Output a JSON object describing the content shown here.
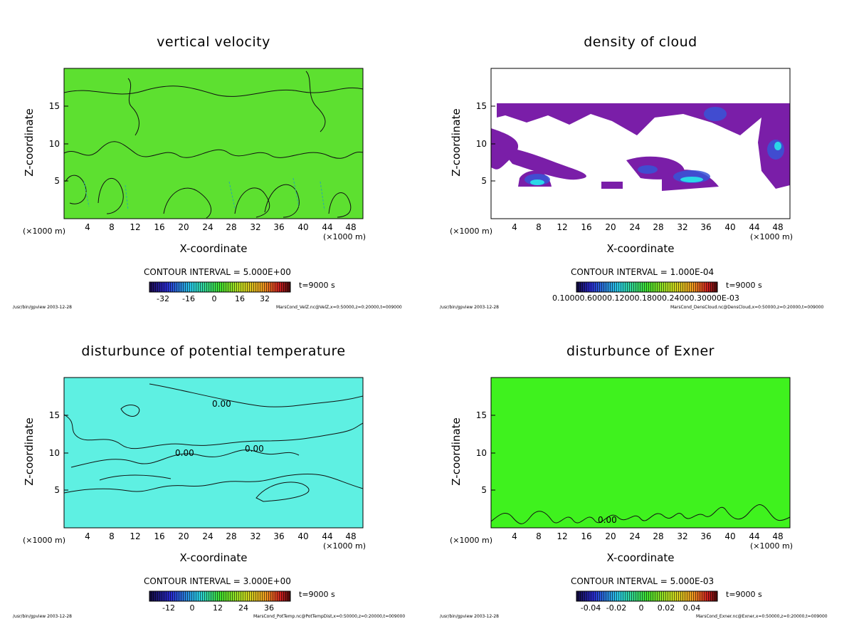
{
  "colors": {
    "velocity_bg": "#5de030",
    "potential_bg": "#5ef0e2",
    "exner_bg": "#3ff21e",
    "cloud_main": "#7a1ea8",
    "cloud_mid": "#3855d8",
    "cloud_high": "#2ad7e8",
    "contour": "#111111",
    "cyan_dash": "#2aa9a8"
  },
  "panels": [
    {
      "title": "vertical velocity",
      "xlabel": "X-coordinate",
      "ylabel": "Z-coordinate",
      "unit_left": "(×1000 m)",
      "unit_right": "(×1000 m)",
      "contour_text": "CONTOUR INTERVAL = 5.000E+00",
      "time_text": "t=9000 s",
      "footer_left": "/usr/bin/gpview  2003-12-28",
      "footer_right": "MarsCond_VelZ.nc@VelZ,x=0:50000,z=0:20000,t=009000",
      "colorbar_ticks": [
        "-32",
        "-16",
        "0",
        "16",
        "32"
      ],
      "contour_labels": []
    },
    {
      "title": "density of cloud",
      "xlabel": "X-coordinate",
      "ylabel": "Z-coordinate",
      "unit_left": "(×1000 m)",
      "unit_right": "(×1000 m)",
      "contour_text": "CONTOUR INTERVAL = 1.000E-04",
      "time_text": "t=9000 s",
      "footer_left": "/usr/bin/gpview  2003-12-28",
      "footer_right": "MarsCond_DensCloud.nc@DensCloud,x=0:50000,z=0:20000,t=009000",
      "colorbar_ticks": [
        "0.10000.60000.12000.18000.24000.30000E-03"
      ],
      "contour_labels": []
    },
    {
      "title": "disturbunce of potential temperature",
      "xlabel": "X-coordinate",
      "ylabel": "Z-coordinate",
      "unit_left": "(×1000 m)",
      "unit_right": "(×1000 m)",
      "contour_text": "CONTOUR INTERVAL = 3.000E+00",
      "time_text": "t=9000 s",
      "footer_left": "/usr/bin/gpview  2003-12-28",
      "footer_right": "MarsCond_PotTemp.nc@PotTempDist,x=0:50000,z=0:20000,t=009000",
      "colorbar_ticks": [
        "-12",
        "0",
        "12",
        "24",
        "36"
      ],
      "contour_labels": [
        "0.00",
        "0.00",
        "0.00"
      ]
    },
    {
      "title": "disturbunce of Exner",
      "xlabel": "X-coordinate",
      "ylabel": "Z-coordinate",
      "unit_left": "(×1000 m)",
      "unit_right": "(×1000 m)",
      "contour_text": "CONTOUR INTERVAL = 5.000E-03",
      "time_text": "t=9000 s",
      "footer_left": "/usr/bin/gpview  2003-12-28",
      "footer_right": "MarsCond_Exner.nc@Exner,x=0:50000,z=0:20000,t=009000",
      "colorbar_ticks": [
        "-0.04",
        "-0.02",
        "0",
        "0.02",
        "0.04"
      ],
      "contour_labels": [
        "0.00"
      ]
    }
  ],
  "chart_data": [
    {
      "type": "heatmap",
      "title": "vertical velocity",
      "xlabel": "X-coordinate",
      "ylabel": "Z-coordinate",
      "x_ticks": [
        4,
        8,
        12,
        16,
        20,
        24,
        28,
        32,
        36,
        40,
        44,
        48
      ],
      "y_ticks": [
        5,
        10,
        15
      ],
      "xlim": [
        0,
        50
      ],
      "ylim": [
        0,
        20
      ],
      "x_unit": "(×1000 m)",
      "colorbar": {
        "min": -40,
        "max": 40,
        "ticks": [
          -32,
          -16,
          0,
          16,
          32
        ]
      },
      "contour_interval": 5.0,
      "time": "t=9000 s"
    },
    {
      "type": "heatmap",
      "title": "density of cloud",
      "xlabel": "X-coordinate",
      "ylabel": "Z-coordinate",
      "x_ticks": [
        4,
        8,
        12,
        16,
        20,
        24,
        28,
        32,
        36,
        40,
        44,
        48
      ],
      "y_ticks": [
        5,
        10,
        15
      ],
      "xlim": [
        0,
        50
      ],
      "ylim": [
        0,
        20
      ],
      "x_unit": "(×1000 m)",
      "colorbar": {
        "ticks_text": "0.10000.60000.12000.18000.24000.30000E-03"
      },
      "contour_interval": 0.0001,
      "time": "t=9000 s"
    },
    {
      "type": "heatmap",
      "title": "disturbunce of potential temperature",
      "xlabel": "X-coordinate",
      "ylabel": "Z-coordinate",
      "x_ticks": [
        4,
        8,
        12,
        16,
        20,
        24,
        28,
        32,
        36,
        40,
        44,
        48
      ],
      "y_ticks": [
        5,
        10,
        15
      ],
      "xlim": [
        0,
        50
      ],
      "ylim": [
        0,
        20
      ],
      "x_unit": "(×1000 m)",
      "colorbar": {
        "min": -18,
        "max": 42,
        "ticks": [
          -12,
          0,
          12,
          24,
          36
        ]
      },
      "contour_interval": 3.0,
      "time": "t=9000 s"
    },
    {
      "type": "heatmap",
      "title": "disturbunce of Exner",
      "xlabel": "X-coordinate",
      "ylabel": "Z-coordinate",
      "x_ticks": [
        4,
        8,
        12,
        16,
        20,
        24,
        28,
        32,
        36,
        40,
        44,
        48
      ],
      "y_ticks": [
        5,
        10,
        15
      ],
      "xlim": [
        0,
        50
      ],
      "ylim": [
        0,
        20
      ],
      "x_unit": "(×1000 m)",
      "colorbar": {
        "min": -0.05,
        "max": 0.05,
        "ticks": [
          -0.04,
          -0.02,
          0,
          0.02,
          0.04
        ]
      },
      "contour_interval": 0.005,
      "time": "t=9000 s"
    }
  ]
}
